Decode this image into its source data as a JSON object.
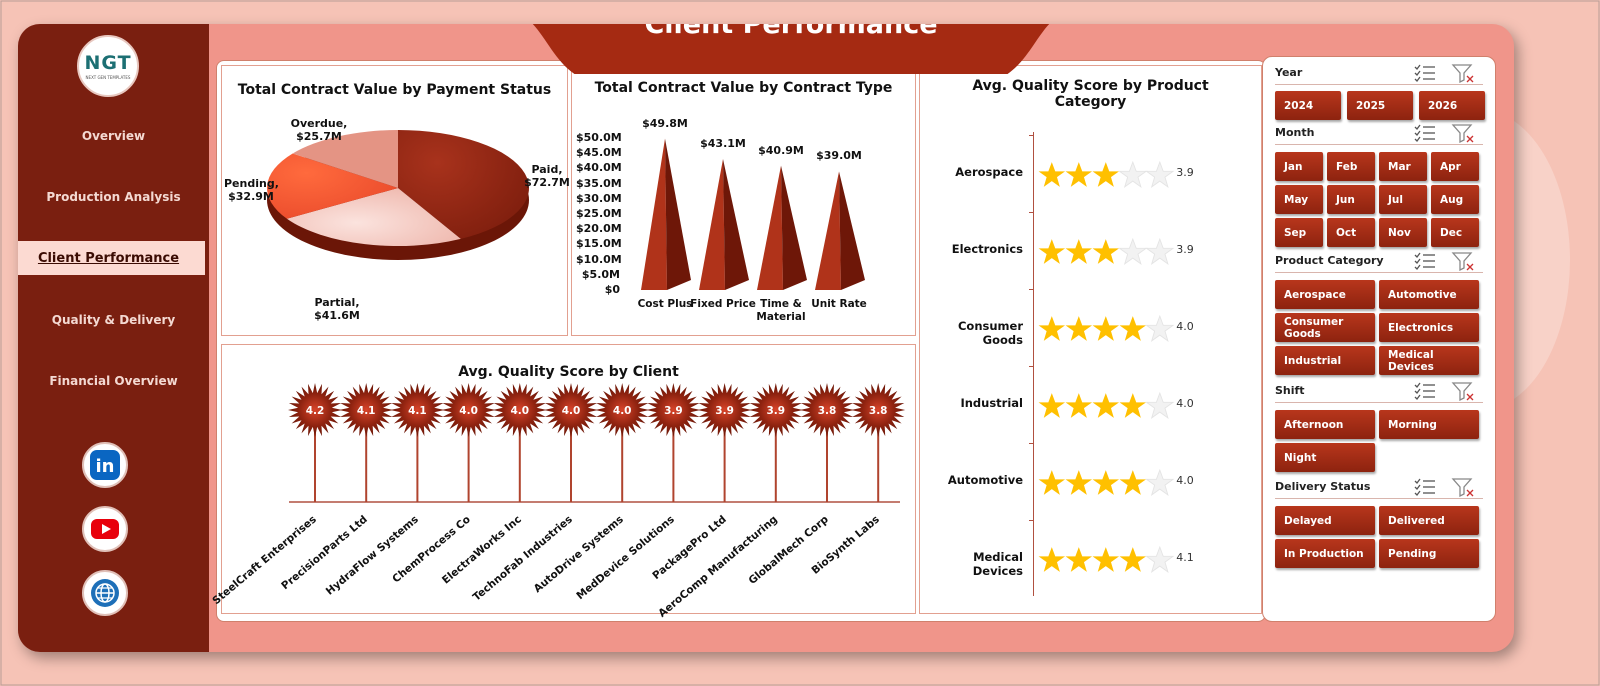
{
  "app": {
    "title": "Client Performance"
  },
  "logo": {
    "text": "NGT",
    "subtitle": "NEXT GEN TEMPLATES"
  },
  "sidebar": {
    "items": [
      {
        "label": "Overview"
      },
      {
        "label": "Production Analysis"
      },
      {
        "label": "Client Performance"
      },
      {
        "label": "Quality & Delivery"
      },
      {
        "label": "Financial Overview"
      }
    ],
    "active": "Client Performance",
    "social": [
      {
        "icon": "linkedin-icon",
        "label": "in",
        "color": "#0a66c2"
      },
      {
        "icon": "youtube-icon",
        "color": "#e8000b"
      },
      {
        "icon": "globe-icon",
        "color": "#1d6fb8"
      }
    ]
  },
  "colors": {
    "primary": "#7a1f10",
    "button": "#9b2a14",
    "background": "#f6c3b6",
    "star": "#ffc000"
  },
  "charts": {
    "payment": {
      "title": "Total Contract Value by Payment Status",
      "labels": [
        {
          "name": "Overdue,",
          "value": "$25.7M"
        },
        {
          "name": "Paid,",
          "value": "$72.7M"
        },
        {
          "name": "Pending,",
          "value": "$32.9M"
        },
        {
          "name": "Partial,",
          "value": "$41.6M"
        }
      ]
    },
    "contract": {
      "title": "Total Contract Value by Contract Type",
      "ticks": [
        "$50.0M",
        "$45.0M",
        "$40.0M",
        "$35.0M",
        "$30.0M",
        "$25.0M",
        "$20.0M",
        "$15.0M",
        "$10.0M",
        "$5.0M",
        "$0"
      ],
      "categories": [
        "Cost Plus",
        "Fixed Price",
        "Time &",
        "Unit Rate"
      ],
      "category_line2": [
        "",
        "",
        "Material",
        ""
      ],
      "data_labels": [
        "$49.8M",
        "$43.1M",
        "$40.9M",
        "$39.0M"
      ]
    },
    "product": {
      "title_line1": "Avg. Quality Score by Product",
      "title_line2": "Category",
      "categories": [
        "Aerospace",
        "Electronics",
        "Consumer Goods",
        "Industrial",
        "Automotive",
        "Medical Devices"
      ],
      "value_labels": [
        "3.9",
        "3.9",
        "4.0",
        "4.0",
        "4.0",
        "4.1"
      ]
    },
    "client": {
      "title": "Avg. Quality Score by Client",
      "clients": [
        "SteelCraft Enterprises",
        "PrecisionParts Ltd",
        "HydraFlow Systems",
        "ChemProcess Co",
        "ElectraWorks Inc",
        "TechnoFab Industries",
        "AutoDrive Systems",
        "MedDevice Solutions",
        "PackagePro Ltd",
        "AeroComp Manufacturing",
        "GlobalMech Corp",
        "BioSynth Labs"
      ],
      "value_labels": [
        "4.2",
        "4.1",
        "4.1",
        "4.0",
        "4.0",
        "4.0",
        "4.0",
        "3.9",
        "3.9",
        "3.9",
        "3.8",
        "3.8"
      ]
    }
  },
  "chart_data": [
    {
      "type": "pie",
      "title": "Total Contract Value by Payment Status",
      "categories": [
        "Paid",
        "Partial",
        "Pending",
        "Overdue"
      ],
      "values": [
        72.7,
        41.6,
        32.9,
        25.7
      ],
      "unit": "$M"
    },
    {
      "type": "bar",
      "title": "Total Contract Value by Contract Type",
      "categories": [
        "Cost Plus",
        "Fixed Price",
        "Time & Material",
        "Unit Rate"
      ],
      "values": [
        49.8,
        43.1,
        40.9,
        39.0
      ],
      "ylim": [
        0,
        50
      ],
      "unit": "$M"
    },
    {
      "type": "bar",
      "title": "Avg. Quality Score by Product Category",
      "categories": [
        "Aerospace",
        "Electronics",
        "Consumer Goods",
        "Industrial",
        "Automotive",
        "Medical Devices"
      ],
      "values": [
        3.9,
        3.9,
        4.0,
        4.0,
        4.0,
        4.1
      ],
      "max": 5
    },
    {
      "type": "bar",
      "title": "Avg. Quality Score by Client",
      "categories": [
        "SteelCraft Enterprises",
        "PrecisionParts Ltd",
        "HydraFlow Systems",
        "ChemProcess Co",
        "ElectraWorks Inc",
        "TechnoFab Industries",
        "AutoDrive Systems",
        "MedDevice Solutions",
        "PackagePro Ltd",
        "AeroComp Manufacturing",
        "GlobalMech Corp",
        "BioSynth Labs"
      ],
      "values": [
        4.2,
        4.1,
        4.1,
        4.0,
        4.0,
        4.0,
        4.0,
        3.9,
        3.9,
        3.9,
        3.8,
        3.8
      ]
    }
  ],
  "slicers": {
    "year": {
      "label": "Year",
      "items": [
        "2024",
        "2025",
        "2026"
      ]
    },
    "month": {
      "label": "Month",
      "items": [
        "Jan",
        "Feb",
        "Mar",
        "Apr",
        "May",
        "Jun",
        "Jul",
        "Aug",
        "Sep",
        "Oct",
        "Nov",
        "Dec"
      ]
    },
    "product": {
      "label": "Product Category",
      "items": [
        "Aerospace",
        "Automotive",
        "Consumer Goods",
        "Electronics",
        "Industrial",
        "Medical Devices"
      ]
    },
    "shift": {
      "label": "Shift",
      "items": [
        "Afternoon",
        "Morning",
        "Night"
      ]
    },
    "delivery": {
      "label": "Delivery Status",
      "items": [
        "Delayed",
        "Delivered",
        "In Production",
        "Pending"
      ]
    }
  }
}
